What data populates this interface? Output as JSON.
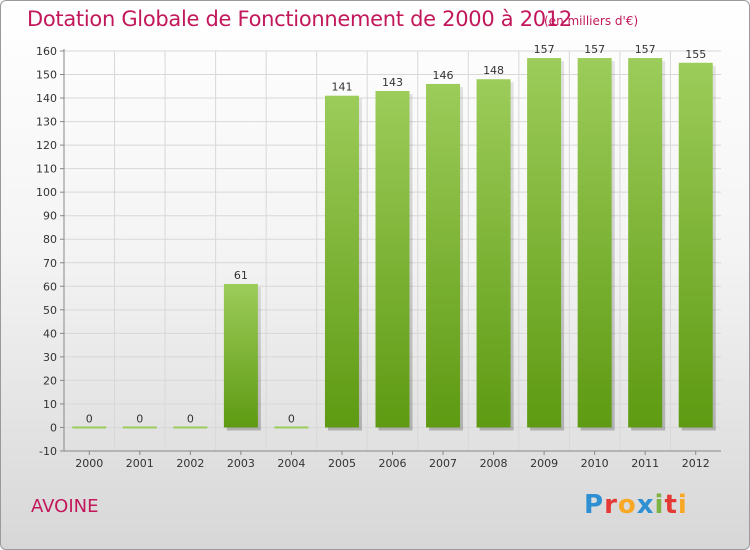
{
  "header": {
    "title": "Dotation Globale de Fonctionnement de 2000 à 2012",
    "unit": "(en milliers d'€)"
  },
  "footer": {
    "commune": "AVOINE",
    "logo_letters": [
      {
        "ch": "P",
        "color": "#2f8fd3"
      },
      {
        "ch": "r",
        "color": "#e53935"
      },
      {
        "ch": "o",
        "color": "#f9a825"
      },
      {
        "ch": "x",
        "color": "#2f8fd3"
      },
      {
        "ch": "i",
        "color": "#7cb342"
      },
      {
        "ch": "t",
        "color": "#e53935"
      },
      {
        "ch": "i",
        "color": "#f9a825"
      }
    ]
  },
  "colors": {
    "bar_top": "#9ccc5a",
    "bar_bottom": "#5e9a12",
    "axis": "#888888",
    "grid": "#d8d8d8",
    "title": "#c2185b"
  },
  "chart_data": {
    "type": "bar",
    "title": "Dotation Globale de Fonctionnement de 2000 à 2012",
    "subtitle": "(en milliers d'€)",
    "xlabel": "",
    "ylabel": "",
    "categories": [
      "2000",
      "2001",
      "2002",
      "2003",
      "2004",
      "2005",
      "2006",
      "2007",
      "2008",
      "2009",
      "2010",
      "2011",
      "2012"
    ],
    "values": [
      0,
      0,
      0,
      61,
      0,
      141,
      143,
      146,
      148,
      157,
      157,
      157,
      155
    ],
    "ylim": [
      -10,
      160
    ],
    "yticks": [
      -10,
      0,
      10,
      20,
      30,
      40,
      50,
      60,
      70,
      80,
      90,
      100,
      110,
      120,
      130,
      140,
      150,
      160
    ],
    "grid": true,
    "legend": "none"
  }
}
